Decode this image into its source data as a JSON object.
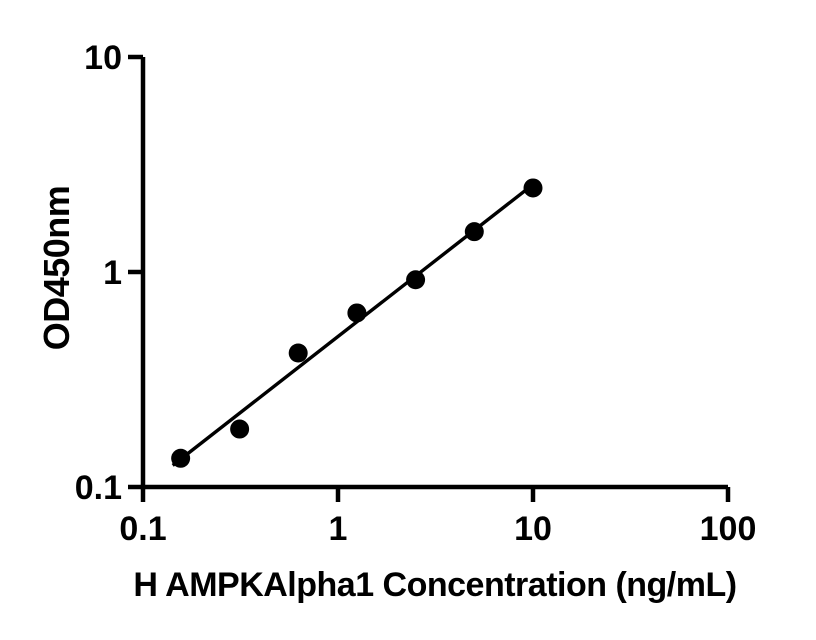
{
  "figure": {
    "background_color": "#ffffff",
    "ink_color": "#000000"
  },
  "chart_data": {
    "type": "scatter",
    "title": "",
    "xlabel": "H AMPKAlpha1 Concentration (ng/mL)",
    "ylabel": "OD450nm",
    "x_scale": "log",
    "y_scale": "log",
    "xlim": [
      0.1,
      100
    ],
    "ylim": [
      0.1,
      10
    ],
    "x_ticks": {
      "values": [
        0.1,
        1,
        10,
        100
      ],
      "labels": [
        "0.1",
        "1",
        "10",
        "100"
      ]
    },
    "y_ticks": {
      "values": [
        0.1,
        1,
        10
      ],
      "labels": [
        "0.1",
        "1",
        "10"
      ]
    },
    "grid": false,
    "legend": false,
    "series": [
      {
        "name": "standard-curve-points",
        "marker": "filled-circle",
        "color": "#000000",
        "x": [
          0.156,
          0.313,
          0.625,
          1.25,
          2.5,
          5,
          10
        ],
        "y": [
          0.136,
          0.186,
          0.42,
          0.645,
          0.92,
          1.54,
          2.46
        ]
      }
    ],
    "trend_line": {
      "name": "power-fit-line",
      "fit_space": "log-log",
      "slope": 0.707,
      "intercept": -0.3,
      "x_start": 0.142,
      "x_end": 10.15,
      "color": "#000000"
    }
  }
}
